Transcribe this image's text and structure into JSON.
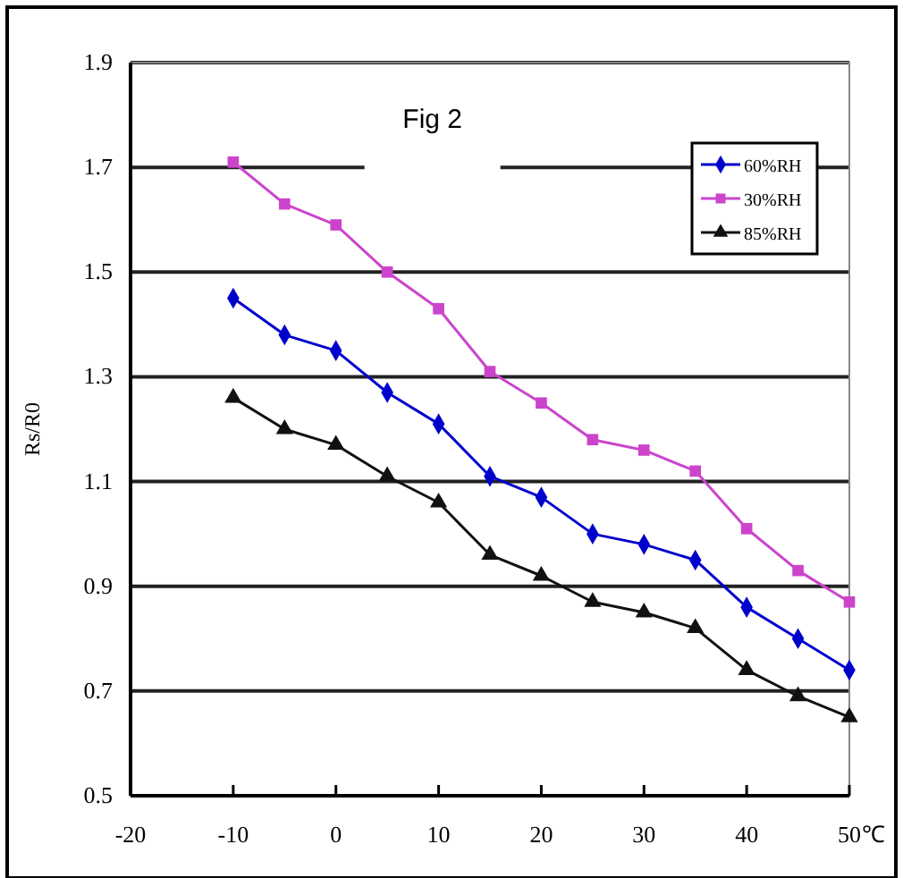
{
  "chart_data": {
    "type": "line",
    "title": "Fig 2",
    "xlabel": "℃",
    "ylabel": "Rs/R0",
    "x": [
      -10,
      -5,
      0,
      5,
      10,
      15,
      20,
      25,
      30,
      35,
      40,
      45,
      50
    ],
    "series": [
      {
        "name": "60%RH",
        "color": "#0000cc",
        "marker": "diamond",
        "values": [
          1.45,
          1.38,
          1.35,
          1.27,
          1.21,
          1.11,
          1.07,
          1.0,
          0.98,
          0.95,
          0.86,
          0.8,
          0.74
        ]
      },
      {
        "name": "30%RH",
        "color": "#cc44cc",
        "marker": "square",
        "values": [
          1.71,
          1.63,
          1.59,
          1.5,
          1.43,
          1.31,
          1.25,
          1.18,
          1.16,
          1.12,
          1.01,
          0.93,
          0.87
        ]
      },
      {
        "name": "85%RH",
        "color": "#111111",
        "marker": "triangle",
        "values": [
          1.26,
          1.2,
          1.17,
          1.11,
          1.06,
          0.96,
          0.92,
          0.87,
          0.85,
          0.82,
          0.74,
          0.69,
          0.65
        ]
      }
    ],
    "xlim": [
      -20,
      50
    ],
    "xticks": [
      -20,
      -10,
      0,
      10,
      20,
      30,
      40,
      50
    ],
    "ylim": [
      0.5,
      1.9
    ],
    "yticks": [
      0.5,
      0.7,
      0.9,
      1.1,
      1.3,
      1.5,
      1.7,
      1.9
    ],
    "grid": "y",
    "legend": "top right"
  }
}
